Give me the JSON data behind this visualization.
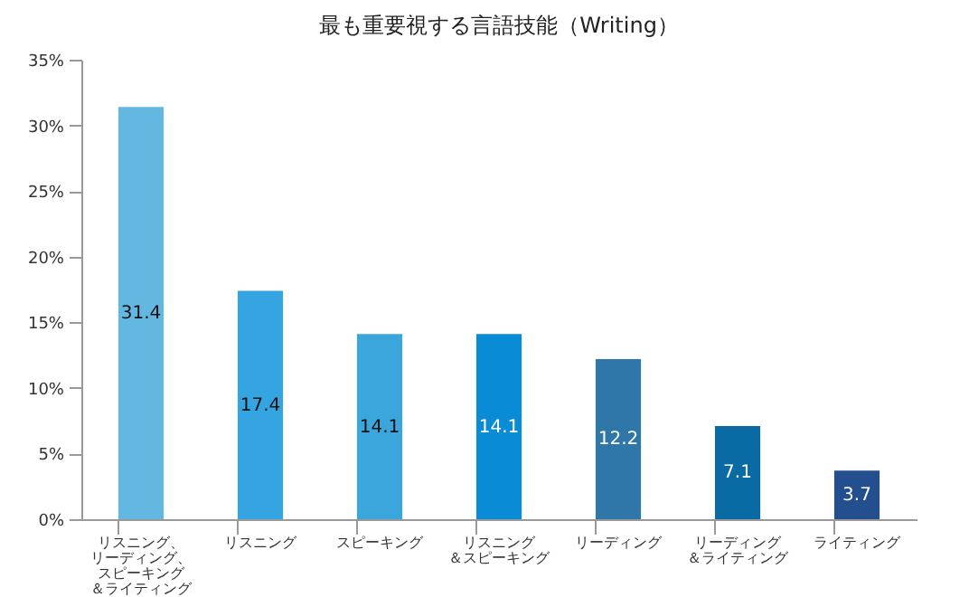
{
  "chart_data": {
    "type": "bar",
    "title": "最も重要視する言語技能（Writing）",
    "categories": [
      "リスニング、リーディング、スピーキング＆ライティング",
      "リスニング",
      "スピーキング",
      "リスニング＆スピーキング",
      "リーディング",
      "リーディング＆ライティング",
      "ライティング"
    ],
    "values": [
      31.4,
      17.4,
      14.1,
      14.1,
      12.2,
      7.1,
      3.7
    ],
    "colors": [
      "#63b8e1",
      "#34a5e0",
      "#3aa6dc",
      "#0a8bd6",
      "#2e77a8",
      "#0a6aa3",
      "#234f8e"
    ],
    "ylim": [
      0,
      35
    ],
    "yticks": [
      {
        "value": 0,
        "label": "0%"
      },
      {
        "value": 5,
        "label": "5%"
      },
      {
        "value": 10,
        "label": "10%"
      },
      {
        "value": 15,
        "label": "15%"
      },
      {
        "value": 20,
        "label": "20%"
      },
      {
        "value": 25,
        "label": "25%"
      },
      {
        "value": 30,
        "label": "30%"
      },
      {
        "value": 35,
        "label": "35%"
      }
    ],
    "data_labels": true
  }
}
